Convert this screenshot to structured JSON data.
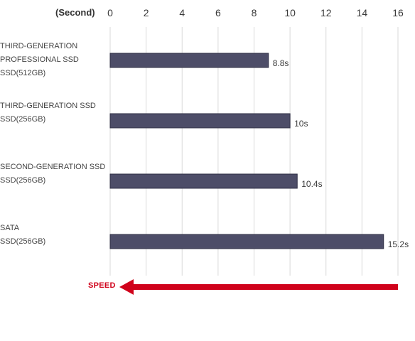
{
  "chart_data": {
    "type": "bar",
    "orientation": "horizontal",
    "unit_label": "(Second)",
    "categories": [
      [
        "THIRD-GENERATION",
        "PROFESSIONAL SSD",
        "SSD(512GB)"
      ],
      [
        "THIRD-GENERATION SSD",
        "SSD(256GB)"
      ],
      [
        "SECOND-GENERATION SSD",
        "SSD(256GB)"
      ],
      [
        "SATA",
        "SSD(256GB)"
      ]
    ],
    "values": [
      8.8,
      10,
      10.4,
      15.2
    ],
    "value_labels": [
      "8.8s",
      "10s",
      "10.4s",
      "15.2s"
    ],
    "xlim": [
      0,
      16
    ],
    "ticks": [
      0,
      2,
      4,
      6,
      8,
      10,
      12,
      14,
      16
    ],
    "tick_position": "top",
    "grid": true,
    "arrow_label": "SPEED",
    "colors": {
      "bar": "#4d4d68",
      "bar_edge": "#2f2f45",
      "grid": "#d9d9d9",
      "arrow": "#d0021b",
      "text": "#3a3a3a"
    }
  }
}
